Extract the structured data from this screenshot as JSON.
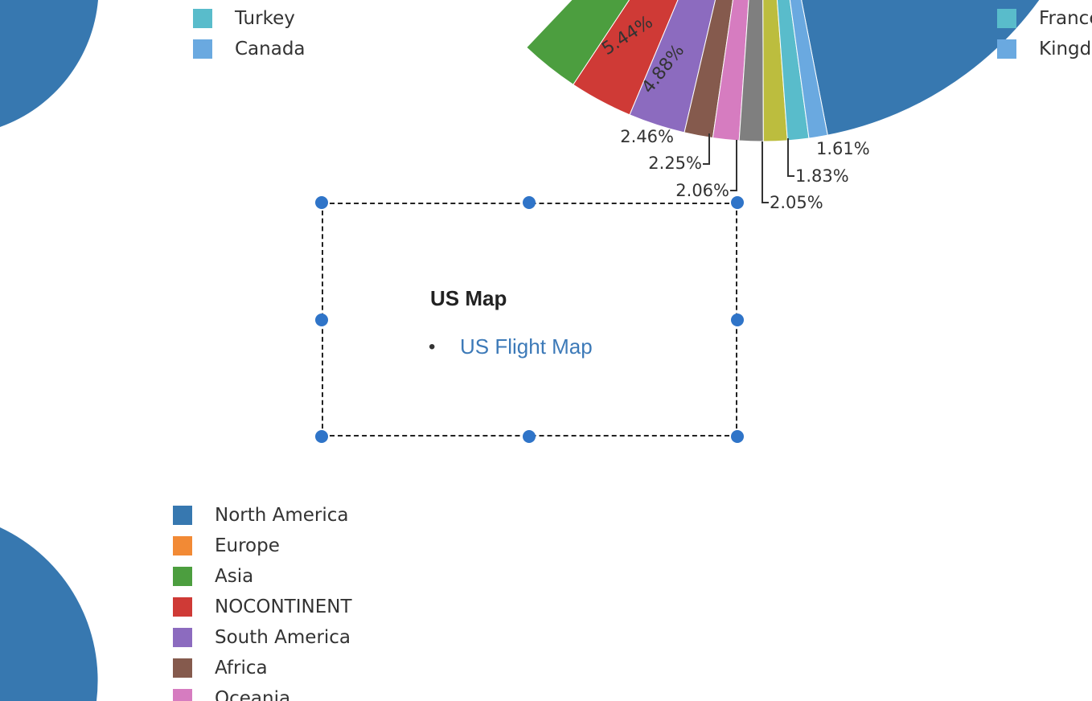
{
  "colors": {
    "north_america": "#3778b0",
    "europe": "#f28a35",
    "asia": "#4c9e3f",
    "nocontinent": "#cf3a36",
    "south_america": "#8c6bbf",
    "africa": "#855a4d",
    "oceania": "#d67cc0",
    "gray": "#7f7f7f",
    "olive": "#bcbd3e",
    "teal": "#59bccb",
    "lightblue": "#6aa9e0",
    "selection": "#2f74c8",
    "link": "#3d7ab8"
  },
  "legend_top_left": {
    "items": [
      {
        "label": "Turkey",
        "color": "#59bccb"
      },
      {
        "label": "Canada",
        "color": "#6aa9e0"
      }
    ]
  },
  "legend_top_right": {
    "items": [
      {
        "label": "France",
        "color": "#59bccb"
      },
      {
        "label": "Kingdom",
        "color": "#6aa9e0"
      }
    ]
  },
  "legend_bottom_left": {
    "items": [
      {
        "label": "North America",
        "color": "#3778b0"
      },
      {
        "label": "Europe",
        "color": "#f28a35"
      },
      {
        "label": "Asia",
        "color": "#4c9e3f"
      },
      {
        "label": "NOCONTINENT",
        "color": "#cf3a36"
      },
      {
        "label": "South America",
        "color": "#8c6bbf"
      },
      {
        "label": "Africa",
        "color": "#855a4d"
      },
      {
        "label": "Oceania",
        "color": "#d67cc0"
      }
    ]
  },
  "widget": {
    "title": "US Map",
    "bullet": "•",
    "link_text": "US Flight Map"
  },
  "chart_data": {
    "type": "pie",
    "slices": [
      {
        "label": "5.44%",
        "value": 5.44,
        "color": "#cf3a36"
      },
      {
        "label": "4.88%",
        "value": 4.88,
        "color": "#8c6bbf"
      },
      {
        "label": "2.46%",
        "value": 2.46,
        "color": "#855a4d"
      },
      {
        "label": "2.25%",
        "value": 2.25,
        "color": "#d67cc0"
      },
      {
        "label": "2.06%",
        "value": 2.06,
        "color": "#7f7f7f"
      },
      {
        "label": "2.05%",
        "value": 2.05,
        "color": "#bcbd3e"
      },
      {
        "label": "1.83%",
        "value": 1.83,
        "color": "#59bccb"
      },
      {
        "label": "1.61%",
        "value": 1.61,
        "color": "#6aa9e0"
      }
    ]
  }
}
